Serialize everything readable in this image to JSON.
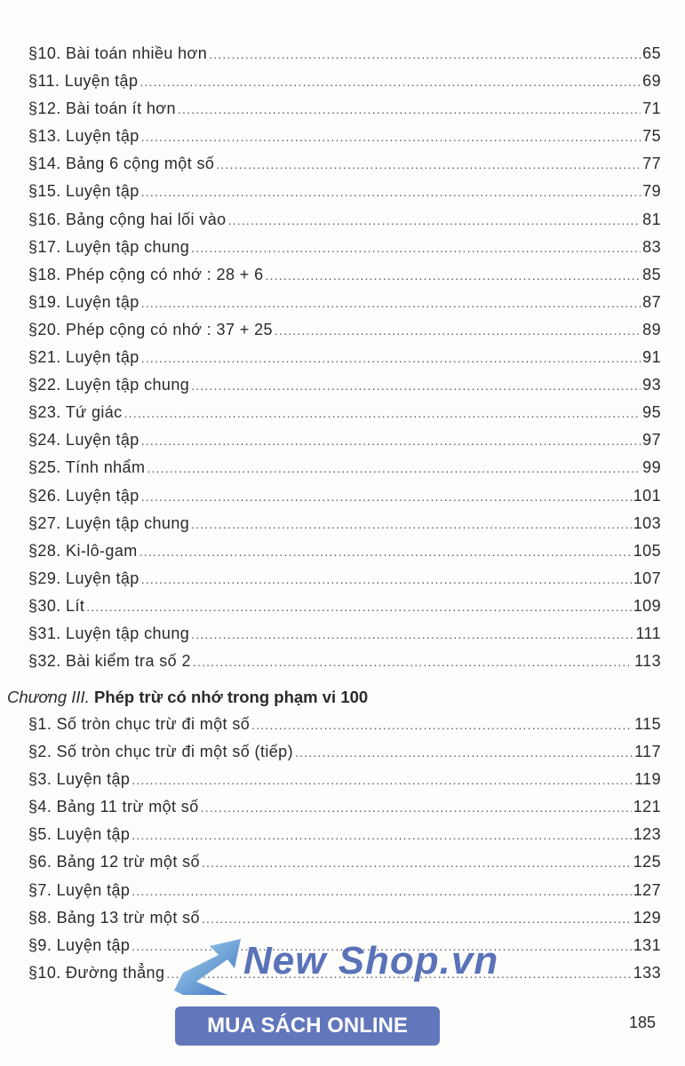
{
  "sections_part1": [
    [
      "§10. Bài toán nhiều hơn",
      "65"
    ],
    [
      "§11. Luyện tập",
      "69"
    ],
    [
      "§12. Bài toán ít hơn",
      "71"
    ],
    [
      "§13. Luyện tập",
      "75"
    ],
    [
      "§14. Bảng 6 cộng một số",
      "77"
    ],
    [
      "§15. Luyện tập",
      "79"
    ],
    [
      "§16. Bảng cộng hai lối vào",
      "81"
    ],
    [
      "§17. Luyện tập chung",
      "83"
    ],
    [
      "§18. Phép cộng có nhớ : 28 + 6",
      "85"
    ],
    [
      "§19. Luyện tập",
      "87"
    ],
    [
      "§20. Phép cộng có nhớ : 37 + 25",
      "89"
    ],
    [
      "§21. Luyện tập",
      "91"
    ],
    [
      "§22. Luyện tập chung",
      "93"
    ],
    [
      "§23. Tứ giác",
      "95"
    ],
    [
      "§24. Luyện tập",
      "97"
    ],
    [
      "§25. Tính nhẩm",
      "99"
    ],
    [
      "§26. Luyện tập",
      "101"
    ],
    [
      "§27. Luyện tập chung",
      "103"
    ],
    [
      "§28. Ki-lô-gam",
      "105"
    ],
    [
      "§29. Luyện tập",
      "107"
    ],
    [
      "§30. Lít",
      "109"
    ],
    [
      "§31. Luyện tập chung",
      "111"
    ],
    [
      "§32. Bài kiểm tra số 2",
      "113"
    ]
  ],
  "chapter": {
    "label": "Chương III.",
    "title": " Phép trừ có nhớ trong phạm vi 100"
  },
  "sections_part2": [
    [
      "§1. Số tròn chục trừ đi một số",
      "115"
    ],
    [
      "§2. Số tròn chục trừ đi một số (tiếp)",
      "117"
    ],
    [
      "§3. Luyện tập",
      "119"
    ],
    [
      "§4. Bảng 11 trừ một số",
      "121"
    ],
    [
      "§5. Luyện tập",
      "123"
    ],
    [
      "§6. Bảng 12 trừ một số",
      "125"
    ],
    [
      "§7. Luyện tập",
      "127"
    ],
    [
      "§8. Bảng 13 trừ một số",
      "129"
    ],
    [
      "§9. Luyện tập",
      "131"
    ],
    [
      "§10. Đường thẳng",
      "133"
    ]
  ],
  "page_number": "185",
  "watermark": {
    "brand": "New Shop.vn",
    "button": "MUA SÁCH ONLINE",
    "color": "#6276bb"
  }
}
